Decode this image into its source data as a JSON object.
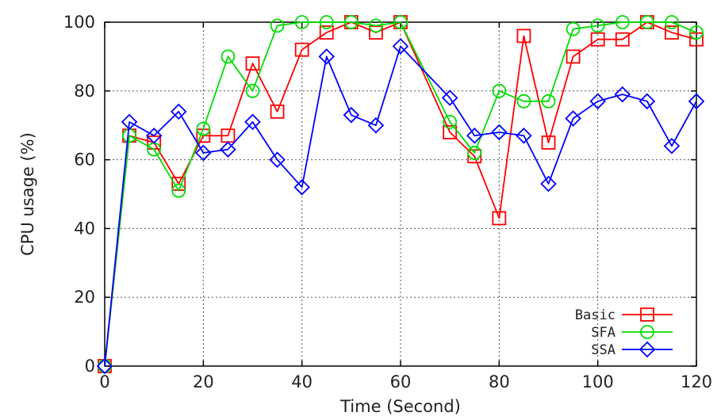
{
  "chart_data": {
    "type": "line",
    "title": "",
    "xlabel": "Time (Second)",
    "ylabel": "CPU usage (%)",
    "xlim": [
      0,
      120
    ],
    "ylim": [
      0,
      100
    ],
    "xticks": [
      0,
      20,
      40,
      60,
      80,
      100,
      120
    ],
    "yticks": [
      0,
      20,
      40,
      60,
      80,
      100
    ],
    "grid": true,
    "legend_position": "bottom-right",
    "series": [
      {
        "name": "Basic",
        "color": "#ff0000",
        "marker": "square",
        "x": [
          0,
          5,
          10,
          15,
          20,
          25,
          30,
          35,
          40,
          45,
          50,
          55,
          60,
          70,
          75,
          80,
          85,
          90,
          95,
          100,
          105,
          110,
          115,
          120
        ],
        "y": [
          0,
          67,
          65,
          53,
          67,
          67,
          88,
          74,
          92,
          97,
          100,
          97,
          100,
          68,
          61,
          43,
          96,
          65,
          90,
          95,
          95,
          100,
          97,
          95
        ]
      },
      {
        "name": "SFA",
        "color": "#00dd00",
        "marker": "circle",
        "x": [
          0,
          5,
          10,
          15,
          20,
          25,
          30,
          35,
          40,
          45,
          50,
          55,
          60,
          70,
          75,
          80,
          85,
          90,
          95,
          100,
          105,
          110,
          115,
          120
        ],
        "y": [
          0,
          67,
          63,
          51,
          69,
          90,
          80,
          99,
          100,
          100,
          100,
          99,
          100,
          71,
          62,
          80,
          77,
          77,
          98,
          99,
          100,
          100,
          100,
          97
        ]
      },
      {
        "name": "SSA",
        "color": "#0000ff",
        "marker": "diamond",
        "x": [
          0,
          5,
          10,
          15,
          20,
          25,
          30,
          35,
          40,
          45,
          50,
          55,
          60,
          70,
          75,
          80,
          85,
          90,
          95,
          100,
          105,
          110,
          115,
          120
        ],
        "y": [
          0,
          71,
          67,
          74,
          62,
          63,
          71,
          60,
          52,
          90,
          73,
          70,
          93,
          78,
          67,
          68,
          67,
          53,
          72,
          77,
          79,
          77,
          64,
          77
        ]
      }
    ]
  }
}
